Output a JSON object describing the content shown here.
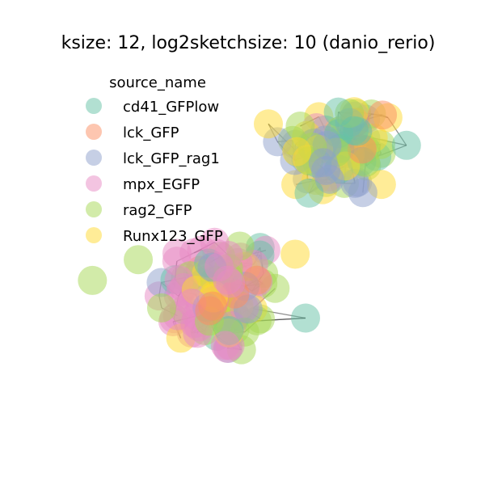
{
  "chart_data": {
    "type": "scatter",
    "title": "ksize: 12, log2sketchsize: 10 (danio_rerio)",
    "grid": false,
    "axes_visible": false,
    "legend": {
      "title": "source_name",
      "placement": "top-left",
      "entries": [
        {
          "name": "cd41_GFPlow",
          "color": "#66c2a5"
        },
        {
          "name": "lck_GFP",
          "color": "#fc8d62"
        },
        {
          "name": "lck_GFP_rag1",
          "color": "#8da0cb"
        },
        {
          "name": "mpx_EGFP",
          "color": "#e78ac3"
        },
        {
          "name": "rag2_GFP",
          "color": "#a6d854"
        },
        {
          "name": "Runx123_GFP",
          "color": "#ffd92f"
        }
      ]
    },
    "edge_color": "#333333",
    "node_alpha": 0.5,
    "xlim": [
      0,
      1
    ],
    "ylim": [
      0,
      1
    ],
    "description_of_layout": "force-directed graph with two overlapping clusters",
    "clusters": [
      {
        "center": [
          0.42,
          0.36
        ],
        "spread": [
          0.15,
          0.15
        ],
        "counts": [
          10,
          6,
          10,
          45,
          28,
          12
        ]
      },
      {
        "center": [
          0.77,
          0.78
        ],
        "spread": [
          0.14,
          0.12
        ],
        "counts": [
          16,
          3,
          22,
          3,
          18,
          22
        ]
      }
    ]
  }
}
